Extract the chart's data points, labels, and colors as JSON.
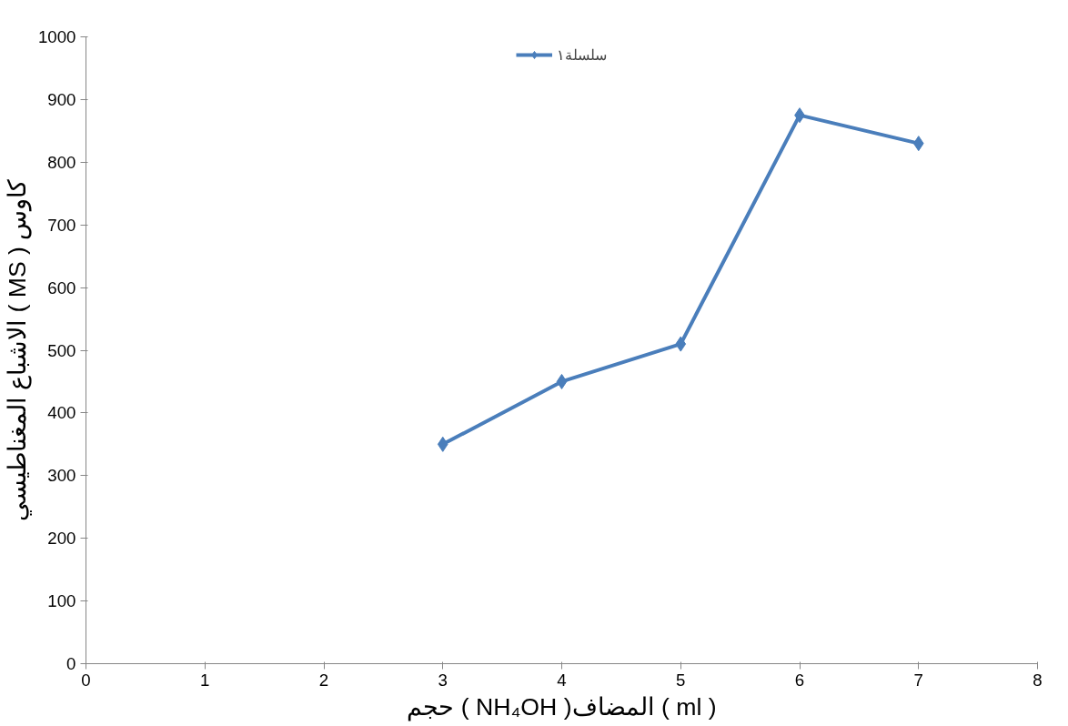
{
  "chart_data": {
    "type": "line",
    "xlabel": "حجم ( NH₄OH )المضاف ( ml )",
    "ylabel": "الاشباع المغناطيسي ( MS ) كاوس",
    "x": [
      3,
      4,
      5,
      6,
      7
    ],
    "series": [
      {
        "name": "سلسلة١",
        "color": "#4a7ebb",
        "values": [
          350,
          450,
          510,
          875,
          830
        ]
      }
    ],
    "xlim": [
      0,
      8
    ],
    "xticks": [
      0,
      1,
      2,
      3,
      4,
      5,
      6,
      7,
      8
    ],
    "ylim": [
      0,
      1000
    ],
    "yticks": [
      0,
      100,
      200,
      300,
      400,
      500,
      600,
      700,
      800,
      900,
      1000
    ],
    "grid": false,
    "legend": "top",
    "marker": "diamond",
    "line_style": "solid"
  }
}
